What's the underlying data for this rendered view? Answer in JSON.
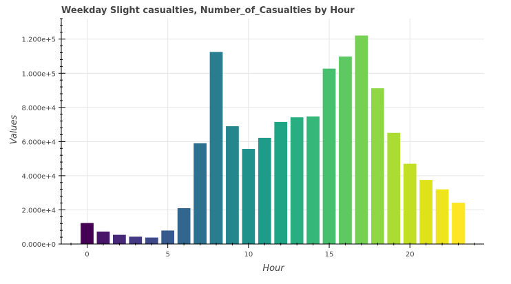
{
  "chart_data": {
    "type": "bar",
    "title": "Weekday Slight casualties, Number_of_Casualties by Hour",
    "xlabel": "Hour",
    "ylabel": "Values",
    "x": [
      0,
      1,
      2,
      3,
      4,
      5,
      6,
      7,
      8,
      9,
      10,
      11,
      12,
      13,
      14,
      15,
      16,
      17,
      18,
      19,
      20,
      21,
      22,
      23
    ],
    "values": [
      12300,
      7300,
      5400,
      4300,
      3800,
      7900,
      21000,
      59000,
      112500,
      69000,
      55700,
      62200,
      71500,
      74200,
      74700,
      102700,
      109800,
      122100,
      91200,
      65100,
      47000,
      37500,
      32000,
      24200
    ],
    "colors": [
      "#440154",
      "#481668",
      "#482878",
      "#443983",
      "#3e4989",
      "#375a8c",
      "#31678e",
      "#2c728e",
      "#287d8e",
      "#24878e",
      "#21918c",
      "#1e9c89",
      "#20a486",
      "#28ae80",
      "#35b779",
      "#46c06f",
      "#5ec962",
      "#75d054",
      "#8fd744",
      "#aadc32",
      "#c2df23",
      "#dde318",
      "#efe51c",
      "#fde725"
    ],
    "xlim": [
      -1.6,
      24.6
    ],
    "ylim": [
      0,
      132000
    ],
    "xticks": [
      0,
      5,
      10,
      15,
      20
    ],
    "yticks": [
      0,
      20000,
      40000,
      60000,
      80000,
      100000,
      120000
    ],
    "ytick_labels": [
      "0.000e+0",
      "2.000e+4",
      "4.000e+4",
      "6.000e+4",
      "8.000e+4",
      "1.000e+5",
      "1.200e+5"
    ],
    "grid": true
  }
}
